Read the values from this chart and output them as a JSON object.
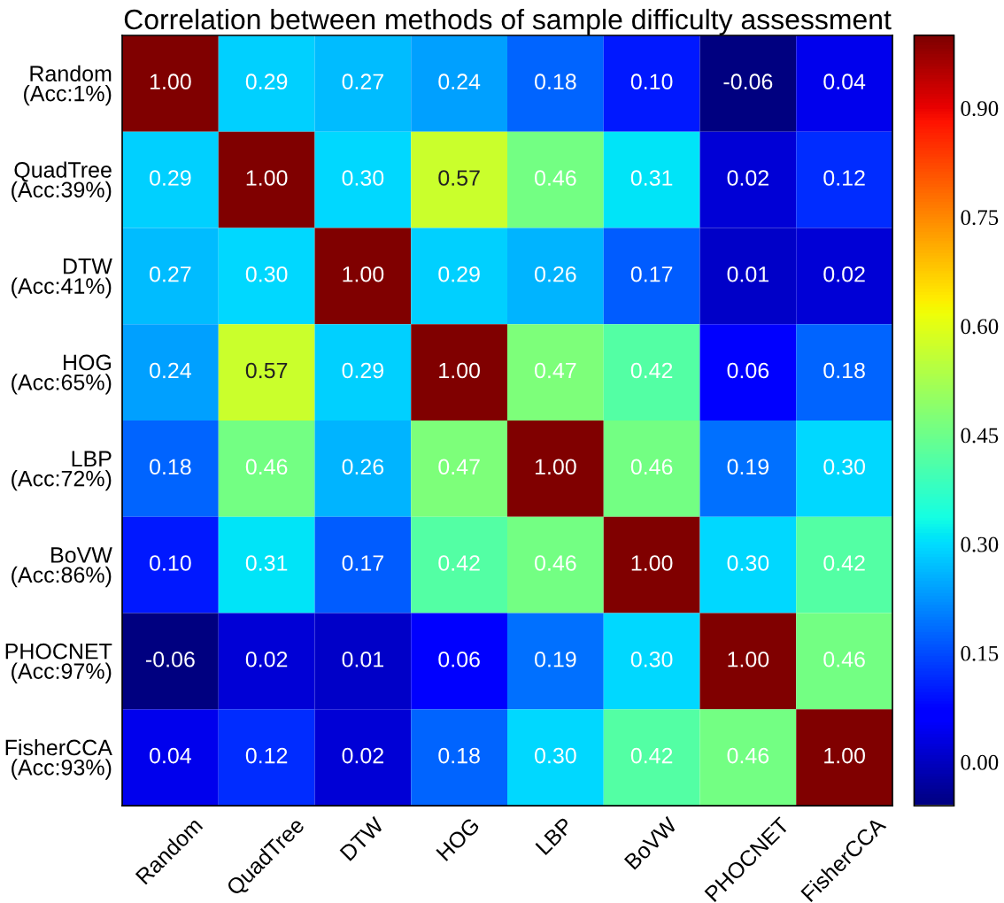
{
  "chart_data": {
    "type": "heatmap",
    "title": "Correlation between methods of sample difficulty assessment",
    "categories": [
      "Random",
      "QuadTree",
      "DTW",
      "HOG",
      "LBP",
      "BoVW",
      "PHOCNET",
      "FisherCCA"
    ],
    "y_categories": [
      "Random\n(Acc:1%)",
      "QuadTree\n(Acc:39%)",
      "DTW\n(Acc:41%)",
      "HOG\n(Acc:65%)",
      "LBP\n(Acc:72%)",
      "BoVW\n(Acc:86%)",
      "PHOCNET\n(Acc:97%)",
      "FisherCCA\n(Acc:93%)"
    ],
    "cells": [
      [
        1.0,
        0.29,
        0.27,
        0.24,
        0.18,
        0.1,
        -0.06,
        0.04
      ],
      [
        0.29,
        1.0,
        0.3,
        0.57,
        0.46,
        0.31,
        0.02,
        0.12
      ],
      [
        0.27,
        0.3,
        1.0,
        0.29,
        0.26,
        0.17,
        0.01,
        0.02
      ],
      [
        0.24,
        0.57,
        0.29,
        1.0,
        0.47,
        0.42,
        0.06,
        0.18
      ],
      [
        0.18,
        0.46,
        0.26,
        0.47,
        1.0,
        0.46,
        0.19,
        0.3
      ],
      [
        0.1,
        0.31,
        0.17,
        0.42,
        0.46,
        1.0,
        0.3,
        0.42
      ],
      [
        -0.06,
        0.02,
        0.01,
        0.06,
        0.19,
        0.3,
        1.0,
        0.46
      ],
      [
        0.04,
        0.12,
        0.02,
        0.18,
        0.3,
        0.42,
        0.46,
        1.0
      ]
    ],
    "cell_labels": [
      [
        "1.00",
        "0.29",
        "0.27",
        "0.24",
        "0.18",
        "0.10",
        "-0.06",
        "0.04"
      ],
      [
        "0.29",
        "1.00",
        "0.30",
        "0.57",
        "0.46",
        "0.31",
        "0.02",
        "0.12"
      ],
      [
        "0.27",
        "0.30",
        "1.00",
        "0.29",
        "0.26",
        "0.17",
        "0.01",
        "0.02"
      ],
      [
        "0.24",
        "0.57",
        "0.29",
        "1.00",
        "0.47",
        "0.42",
        "0.06",
        "0.18"
      ],
      [
        "0.18",
        "0.46",
        "0.26",
        "0.47",
        "1.00",
        "0.46",
        "0.19",
        "0.30"
      ],
      [
        "0.10",
        "0.31",
        "0.17",
        "0.42",
        "0.46",
        "1.00",
        "0.30",
        "0.42"
      ],
      [
        "-0.06",
        "0.02",
        "0.01",
        "0.06",
        "0.19",
        "0.30",
        "1.00",
        "0.46"
      ],
      [
        "0.04",
        "0.12",
        "0.02",
        "0.18",
        "0.30",
        "0.42",
        "0.46",
        "1.00"
      ]
    ],
    "clim": [
      -0.06,
      1.0
    ],
    "cticks": [
      {
        "value": 0,
        "label": "0.00"
      },
      {
        "value": 0.15,
        "label": "0.15"
      },
      {
        "value": 0.3,
        "label": "0.30"
      },
      {
        "value": 0.45,
        "label": "0.45"
      },
      {
        "value": 0.6,
        "label": "0.60"
      },
      {
        "value": 0.75,
        "label": "0.75"
      },
      {
        "value": 0.9,
        "label": "0.90"
      }
    ]
  }
}
